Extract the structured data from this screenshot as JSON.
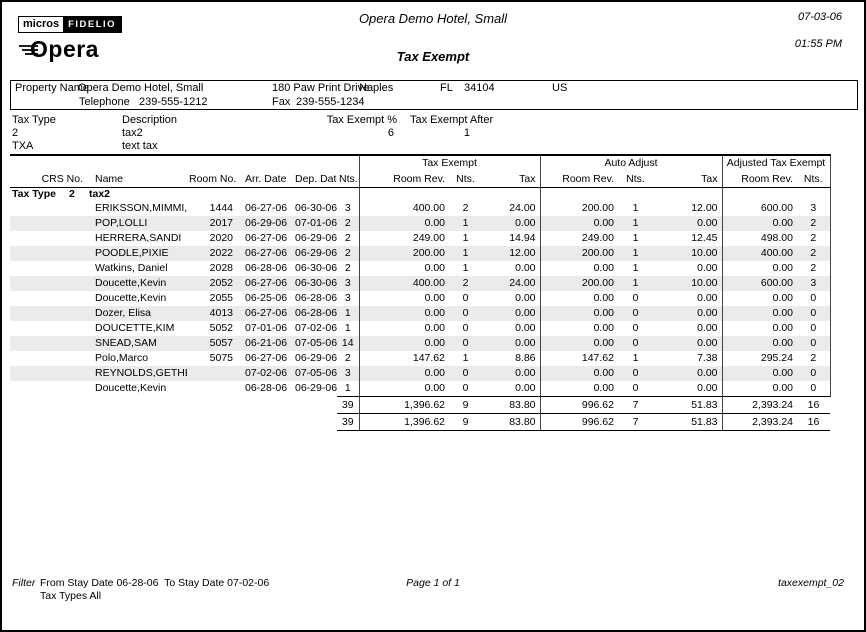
{
  "page": {
    "brand": {
      "micros": "micros",
      "fidelio": "FIDELIO",
      "opera": "Opera"
    },
    "hotel_title": "Opera Demo Hotel, Small",
    "report_title": "Tax Exempt",
    "date": "07-03-06",
    "time": "01:55 PM"
  },
  "property": {
    "label": "Property Name",
    "name": "Opera Demo Hotel, Small",
    "address": "180 Paw Print Drive",
    "city": "Naples",
    "state": "FL",
    "zip": "34104",
    "country": "US",
    "telephone_label": "Telephone",
    "telephone": "239-555-1212",
    "fax_label": "Fax",
    "fax": "239-555-1234"
  },
  "tax_types": {
    "headers": {
      "type": "Tax Type",
      "description": "Description",
      "exempt_pct": "Tax Exempt %",
      "exempt_after": "Tax Exempt After"
    },
    "rows": [
      {
        "type": "2",
        "description": "tax2",
        "exempt_pct": "6",
        "exempt_after": "1"
      },
      {
        "type": "TXA",
        "description": "text tax",
        "exempt_pct": "",
        "exempt_after": ""
      }
    ]
  },
  "table": {
    "groups": {
      "tax_exempt": "Tax Exempt",
      "auto_adjust": "Auto Adjust",
      "adjusted_tax_exempt": "Adjusted Tax Exempt"
    },
    "headers": {
      "crs": "CRS No.",
      "name": "Name",
      "room": "Room No.",
      "arr": "Arr. Date",
      "dep": "Dep. Date",
      "nts": "Nts.",
      "te_room_rev": "Room Rev.",
      "te_nts": "Nts.",
      "te_tax": "Tax",
      "aa_room_rev": "Room Rev.",
      "aa_nts": "Nts.",
      "aa_tax": "Tax",
      "adj_room_rev": "Room Rev.",
      "adj_nts": "Nts."
    },
    "section": {
      "label": "Tax Type",
      "type": "2",
      "description": "tax2"
    },
    "rows": [
      {
        "name": "ERIKSSON,MIMMI,Ms.",
        "room": "1444",
        "arr": "06-27-06",
        "dep": "06-30-06",
        "nts": "3",
        "te_rev": "400.00",
        "te_nts": "2",
        "te_tax": "24.00",
        "aa_rev": "200.00",
        "aa_nts": "1",
        "aa_tax": "12.00",
        "adj_rev": "600.00",
        "adj_nts": "3"
      },
      {
        "name": "POP,LOLLI",
        "room": "2017",
        "arr": "06-29-06",
        "dep": "07-01-06",
        "nts": "2",
        "te_rev": "0.00",
        "te_nts": "1",
        "te_tax": "0.00",
        "aa_rev": "0.00",
        "aa_nts": "1",
        "aa_tax": "0.00",
        "adj_rev": "0.00",
        "adj_nts": "2"
      },
      {
        "name": "HERRERA,SANDI",
        "room": "2020",
        "arr": "06-27-06",
        "dep": "06-29-06",
        "nts": "2",
        "te_rev": "249.00",
        "te_nts": "1",
        "te_tax": "14.94",
        "aa_rev": "249.00",
        "aa_nts": "1",
        "aa_tax": "12.45",
        "adj_rev": "498.00",
        "adj_nts": "2"
      },
      {
        "name": "POODLE,PIXIE",
        "room": "2022",
        "arr": "06-27-06",
        "dep": "06-29-06",
        "nts": "2",
        "te_rev": "200.00",
        "te_nts": "1",
        "te_tax": "12.00",
        "aa_rev": "200.00",
        "aa_nts": "1",
        "aa_tax": "10.00",
        "adj_rev": "400.00",
        "adj_nts": "2"
      },
      {
        "name": "Watkins, Daniel",
        "room": "2028",
        "arr": "06-28-06",
        "dep": "06-30-06",
        "nts": "2",
        "te_rev": "0.00",
        "te_nts": "1",
        "te_tax": "0.00",
        "aa_rev": "0.00",
        "aa_nts": "1",
        "aa_tax": "0.00",
        "adj_rev": "0.00",
        "adj_nts": "2"
      },
      {
        "name": "Doucette,Kevin",
        "room": "2052",
        "arr": "06-27-06",
        "dep": "06-30-06",
        "nts": "3",
        "te_rev": "400.00",
        "te_nts": "2",
        "te_tax": "24.00",
        "aa_rev": "200.00",
        "aa_nts": "1",
        "aa_tax": "10.00",
        "adj_rev": "600.00",
        "adj_nts": "3"
      },
      {
        "name": "Doucette,Kevin",
        "room": "2055",
        "arr": "06-25-06",
        "dep": "06-28-06",
        "nts": "3",
        "te_rev": "0.00",
        "te_nts": "0",
        "te_tax": "0.00",
        "aa_rev": "0.00",
        "aa_nts": "0",
        "aa_tax": "0.00",
        "adj_rev": "0.00",
        "adj_nts": "0"
      },
      {
        "name": "Dozer, Elisa",
        "room": "4013",
        "arr": "06-27-06",
        "dep": "06-28-06",
        "nts": "1",
        "te_rev": "0.00",
        "te_nts": "0",
        "te_tax": "0.00",
        "aa_rev": "0.00",
        "aa_nts": "0",
        "aa_tax": "0.00",
        "adj_rev": "0.00",
        "adj_nts": "0"
      },
      {
        "name": "DOUCETTE,KIM",
        "room": "5052",
        "arr": "07-01-06",
        "dep": "07-02-06",
        "nts": "1",
        "te_rev": "0.00",
        "te_nts": "0",
        "te_tax": "0.00",
        "aa_rev": "0.00",
        "aa_nts": "0",
        "aa_tax": "0.00",
        "adj_rev": "0.00",
        "adj_nts": "0"
      },
      {
        "name": "SNEAD,SAM",
        "room": "5057",
        "arr": "06-21-06",
        "dep": "07-05-06",
        "nts": "14",
        "te_rev": "0.00",
        "te_nts": "0",
        "te_tax": "0.00",
        "aa_rev": "0.00",
        "aa_nts": "0",
        "aa_tax": "0.00",
        "adj_rev": "0.00",
        "adj_nts": "0"
      },
      {
        "name": "Polo,Marco",
        "room": "5075",
        "arr": "06-27-06",
        "dep": "06-29-06",
        "nts": "2",
        "te_rev": "147.62",
        "te_nts": "1",
        "te_tax": "8.86",
        "aa_rev": "147.62",
        "aa_nts": "1",
        "aa_tax": "7.38",
        "adj_rev": "295.24",
        "adj_nts": "2"
      },
      {
        "name": "REYNOLDS,GETHER",
        "room": "",
        "arr": "07-02-06",
        "dep": "07-05-06",
        "nts": "3",
        "te_rev": "0.00",
        "te_nts": "0",
        "te_tax": "0.00",
        "aa_rev": "0.00",
        "aa_nts": "0",
        "aa_tax": "0.00",
        "adj_rev": "0.00",
        "adj_nts": "0"
      },
      {
        "name": "Doucette,Kevin",
        "room": "",
        "arr": "06-28-06",
        "dep": "06-29-06",
        "nts": "1",
        "te_rev": "0.00",
        "te_nts": "0",
        "te_tax": "0.00",
        "aa_rev": "0.00",
        "aa_nts": "0",
        "aa_tax": "0.00",
        "adj_rev": "0.00",
        "adj_nts": "0"
      }
    ],
    "subtotal": {
      "nts": "39",
      "te_rev": "1,396.62",
      "te_nts": "9",
      "te_tax": "83.80",
      "aa_rev": "996.62",
      "aa_nts": "7",
      "aa_tax": "51.83",
      "adj_rev": "2,393.24",
      "adj_nts": "16"
    },
    "total": {
      "nts": "39",
      "te_rev": "1,396.62",
      "te_nts": "9",
      "te_tax": "83.80",
      "aa_rev": "996.62",
      "aa_nts": "7",
      "aa_tax": "51.83",
      "adj_rev": "2,393.24",
      "adj_nts": "16"
    }
  },
  "footer": {
    "filter_label": "Filter",
    "filter_line1": "From Stay Date 06-28-06  To Stay Date 07-02-06",
    "filter_line2": "Tax Types All",
    "page_number": "Page 1 of 1",
    "report_id": "taxexempt_02"
  }
}
